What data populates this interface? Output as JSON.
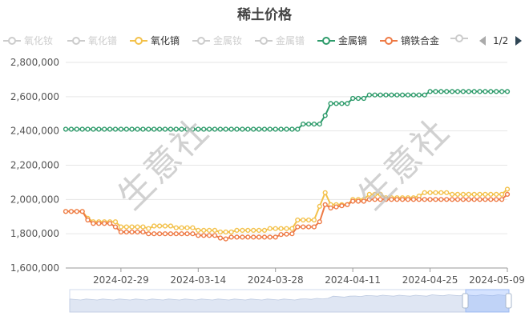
{
  "chart_data": {
    "type": "line",
    "title": "稀土价格",
    "ylim": [
      1600000,
      2800000
    ],
    "yticks": [
      1600000,
      1800000,
      2000000,
      2200000,
      2400000,
      2600000,
      2800000
    ],
    "ytick_labels": [
      "1,600,000",
      "1,800,000",
      "2,000,000",
      "2,200,000",
      "2,400,000",
      "2,600,000",
      "2,800,000"
    ],
    "xlim": [
      "2024-02-19",
      "2024-05-09"
    ],
    "xtick_labels": [
      "2024-02-29",
      "2024-03-14",
      "2024-03-28",
      "2024-04-11",
      "2024-04-25",
      "2024-05-09"
    ],
    "grid": true,
    "legend_position": "top",
    "legend": [
      {
        "name": "氧化钕",
        "visible": false
      },
      {
        "name": "氧化镨",
        "visible": false
      },
      {
        "name": "氧化镝",
        "visible": true,
        "color": "#f3c14a"
      },
      {
        "name": "金属钕",
        "visible": false
      },
      {
        "name": "金属镨",
        "visible": false
      },
      {
        "name": "金属镝",
        "visible": true,
        "color": "#2e9b6b"
      },
      {
        "name": "镝铁合金",
        "visible": true,
        "color": "#ee7a45"
      },
      {
        "name": "",
        "visible": false
      }
    ],
    "legend_page": "1/2",
    "series": [
      {
        "name": "金属镝",
        "color": "#2e9b6b",
        "points": [
          [
            "2024-02-19",
            2410000
          ],
          [
            "2024-04-01",
            2410000
          ],
          [
            "2024-04-02",
            2440000
          ],
          [
            "2024-04-05",
            2440000
          ],
          [
            "2024-04-06",
            2490000
          ],
          [
            "2024-04-07",
            2560000
          ],
          [
            "2024-04-10",
            2560000
          ],
          [
            "2024-04-11",
            2590000
          ],
          [
            "2024-04-13",
            2590000
          ],
          [
            "2024-04-14",
            2610000
          ],
          [
            "2024-04-24",
            2610000
          ],
          [
            "2024-04-25",
            2630000
          ],
          [
            "2024-05-09",
            2630000
          ]
        ]
      },
      {
        "name": "氧化镝",
        "color": "#f3c14a",
        "points": [
          [
            "2024-02-19",
            1930000
          ],
          [
            "2024-02-22",
            1930000
          ],
          [
            "2024-02-23",
            1890000
          ],
          [
            "2024-02-24",
            1870000
          ],
          [
            "2024-02-28",
            1870000
          ],
          [
            "2024-02-29",
            1840000
          ],
          [
            "2024-03-04",
            1840000
          ],
          [
            "2024-03-05",
            1830000
          ],
          [
            "2024-03-06",
            1845000
          ],
          [
            "2024-03-09",
            1845000
          ],
          [
            "2024-03-10",
            1835000
          ],
          [
            "2024-03-13",
            1835000
          ],
          [
            "2024-03-14",
            1820000
          ],
          [
            "2024-03-17",
            1820000
          ],
          [
            "2024-03-18",
            1810000
          ],
          [
            "2024-03-20",
            1810000
          ],
          [
            "2024-03-21",
            1820000
          ],
          [
            "2024-03-26",
            1820000
          ],
          [
            "2024-03-27",
            1830000
          ],
          [
            "2024-03-31",
            1830000
          ],
          [
            "2024-04-01",
            1880000
          ],
          [
            "2024-04-04",
            1880000
          ],
          [
            "2024-04-05",
            1960000
          ],
          [
            "2024-04-06",
            2040000
          ],
          [
            "2024-04-07",
            1970000
          ],
          [
            "2024-04-10",
            1970000
          ],
          [
            "2024-04-11",
            2000000
          ],
          [
            "2024-04-13",
            2000000
          ],
          [
            "2024-04-14",
            2030000
          ],
          [
            "2024-04-16",
            2030000
          ],
          [
            "2024-04-17",
            2010000
          ],
          [
            "2024-04-22",
            2010000
          ],
          [
            "2024-04-23",
            2020000
          ],
          [
            "2024-04-24",
            2040000
          ],
          [
            "2024-04-28",
            2040000
          ],
          [
            "2024-04-29",
            2030000
          ],
          [
            "2024-05-08",
            2030000
          ],
          [
            "2024-05-09",
            2060000
          ]
        ]
      },
      {
        "name": "镝铁合金",
        "color": "#ee7a45",
        "points": [
          [
            "2024-02-19",
            1930000
          ],
          [
            "2024-02-22",
            1930000
          ],
          [
            "2024-02-23",
            1880000
          ],
          [
            "2024-02-24",
            1860000
          ],
          [
            "2024-02-27",
            1860000
          ],
          [
            "2024-02-28",
            1840000
          ],
          [
            "2024-02-29",
            1810000
          ],
          [
            "2024-03-04",
            1810000
          ],
          [
            "2024-03-05",
            1800000
          ],
          [
            "2024-03-13",
            1800000
          ],
          [
            "2024-03-14",
            1790000
          ],
          [
            "2024-03-17",
            1790000
          ],
          [
            "2024-03-18",
            1775000
          ],
          [
            "2024-03-19",
            1770000
          ],
          [
            "2024-03-20",
            1780000
          ],
          [
            "2024-03-28",
            1780000
          ],
          [
            "2024-03-29",
            1795000
          ],
          [
            "2024-03-31",
            1800000
          ],
          [
            "2024-04-01",
            1840000
          ],
          [
            "2024-04-04",
            1840000
          ],
          [
            "2024-04-05",
            1870000
          ],
          [
            "2024-04-06",
            1970000
          ],
          [
            "2024-04-07",
            1950000
          ],
          [
            "2024-04-10",
            1970000
          ],
          [
            "2024-04-11",
            1990000
          ],
          [
            "2024-04-13",
            1990000
          ],
          [
            "2024-04-14",
            2000000
          ],
          [
            "2024-05-08",
            2000000
          ],
          [
            "2024-05-09",
            2030000
          ]
        ]
      }
    ],
    "watermark": "生意社"
  }
}
